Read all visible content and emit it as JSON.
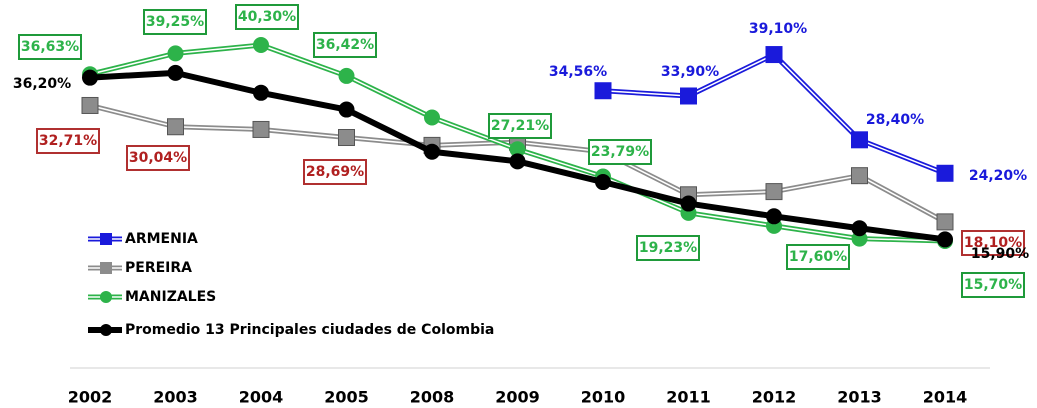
{
  "chart_data": {
    "type": "line",
    "categories": [
      "2002",
      "2003",
      "2004",
      "2005",
      "2008",
      "2009",
      "2010",
      "2011",
      "2012",
      "2013",
      "2014"
    ],
    "series": [
      {
        "name": "ARMENIA",
        "color": "#1a1adb",
        "marker": "square",
        "values": [
          null,
          null,
          null,
          null,
          null,
          null,
          34.56,
          33.9,
          39.1,
          28.4,
          24.2
        ],
        "value_labels": [
          null,
          null,
          null,
          null,
          null,
          null,
          "34,56%",
          "33,90%",
          "39,10%",
          "28,40%",
          "24,20%"
        ]
      },
      {
        "name": "PEREIRA",
        "color": "#8c8c8c",
        "marker": "square",
        "values": [
          32.71,
          30.04,
          29.7,
          28.69,
          27.7,
          28.1,
          26.9,
          21.5,
          21.9,
          23.9,
          18.1
        ],
        "value_labels": [
          "32,71%",
          "30,04%",
          null,
          "28,69%",
          null,
          null,
          null,
          null,
          null,
          null,
          "18,10%"
        ]
      },
      {
        "name": "MANIZALES",
        "color": "#2db34a",
        "marker": "circle",
        "values": [
          36.63,
          39.25,
          40.3,
          36.42,
          31.2,
          27.21,
          23.79,
          19.23,
          17.6,
          16.0,
          15.7
        ],
        "value_labels": [
          "36,63%",
          "39,25%",
          "40,30%",
          "36,42%",
          null,
          "27,21%",
          "23,79%",
          "19,23%",
          "17,60%",
          null,
          "15,70%"
        ]
      },
      {
        "name": "Promedio 13 Principales ciudades de Colombia",
        "color": "#000000",
        "marker": "circle",
        "values": [
          36.2,
          36.8,
          34.3,
          32.2,
          26.9,
          25.7,
          23.1,
          20.4,
          18.8,
          17.3,
          15.9
        ],
        "value_labels": [
          "36,20%",
          null,
          null,
          null,
          null,
          null,
          null,
          null,
          null,
          null,
          "15,90%"
        ]
      }
    ]
  }
}
